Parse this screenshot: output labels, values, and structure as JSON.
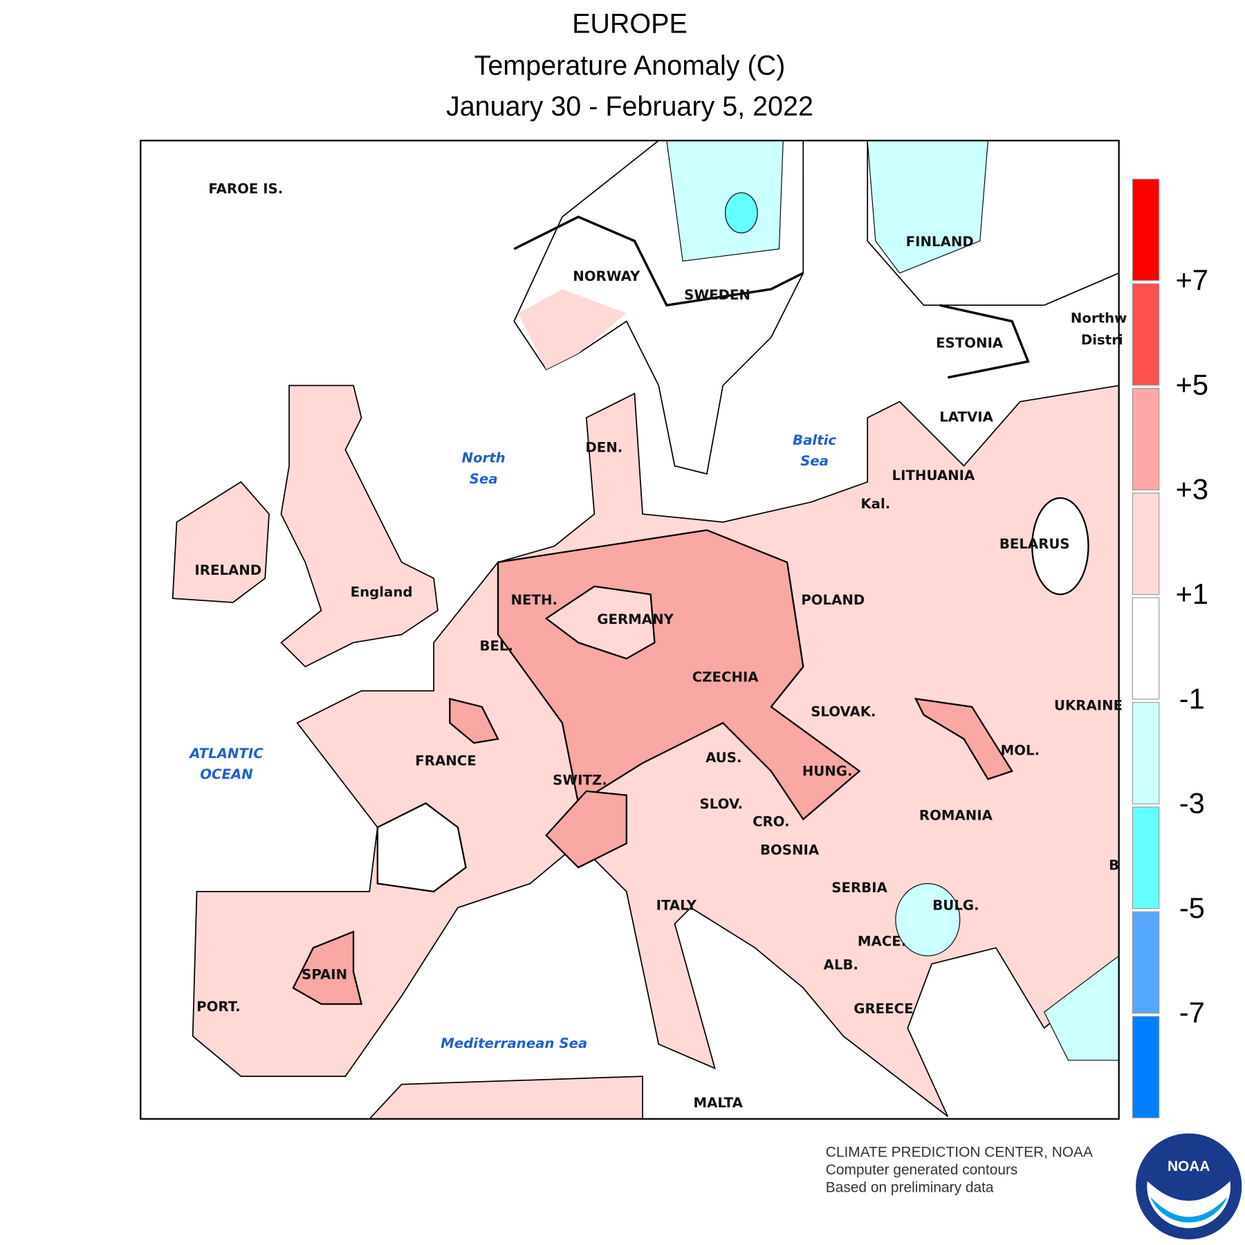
{
  "header": {
    "region": "EUROPE",
    "title": "Temperature Anomaly (C)",
    "period": "January 30 - February 5, 2022"
  },
  "map": {
    "labels": [
      "FAROE IS.",
      "NORWAY",
      "SWEDEN",
      "FINLAND",
      "Northw",
      "Distri",
      "ESTONIA",
      "LATVIA",
      "DEN.",
      "LITHUANIA",
      "Kal.",
      "BELARUS",
      "IRELAND",
      "England",
      "NETH.",
      "POLAND",
      "GERMANY",
      "BEL.",
      "CZECHIA",
      "UKRAINE",
      "SLOVAK.",
      "FRANCE",
      "AUS.",
      "MOL.",
      "HUNG.",
      "SWITZ.",
      "SLOV.",
      "ROMANIA",
      "CRO.",
      "BOSNIA",
      "B",
      "SERBIA",
      "ITALY",
      "BULG.",
      "MACE.",
      "ALB.",
      "SPAIN",
      "GREECE",
      "PORT.",
      "MALTA"
    ],
    "water_labels": [
      "North",
      "Sea",
      "Baltic",
      "Sea",
      "ATLANTIC",
      "OCEAN",
      "Mediterranean Sea"
    ]
  },
  "legend": {
    "colors": [
      "#ff0000",
      "#ff4f4f",
      "#ffa8a8",
      "#ffd9d6",
      "#ffffff",
      "#ccffff",
      "#66ffff",
      "#55a8ff",
      "#0080ff"
    ],
    "ticks": [
      {
        "value": 7,
        "label": "+7"
      },
      {
        "value": 5,
        "label": "+5"
      },
      {
        "value": 3,
        "label": "+3"
      },
      {
        "value": 1,
        "label": "+1"
      },
      -1,
      -3,
      -5,
      -7
    ]
  },
  "credits": [
    "CLIMATE PREDICTION CENTER, NOAA",
    "Computer generated contours",
    "Based on preliminary data"
  ],
  "logo": "NOAA"
}
